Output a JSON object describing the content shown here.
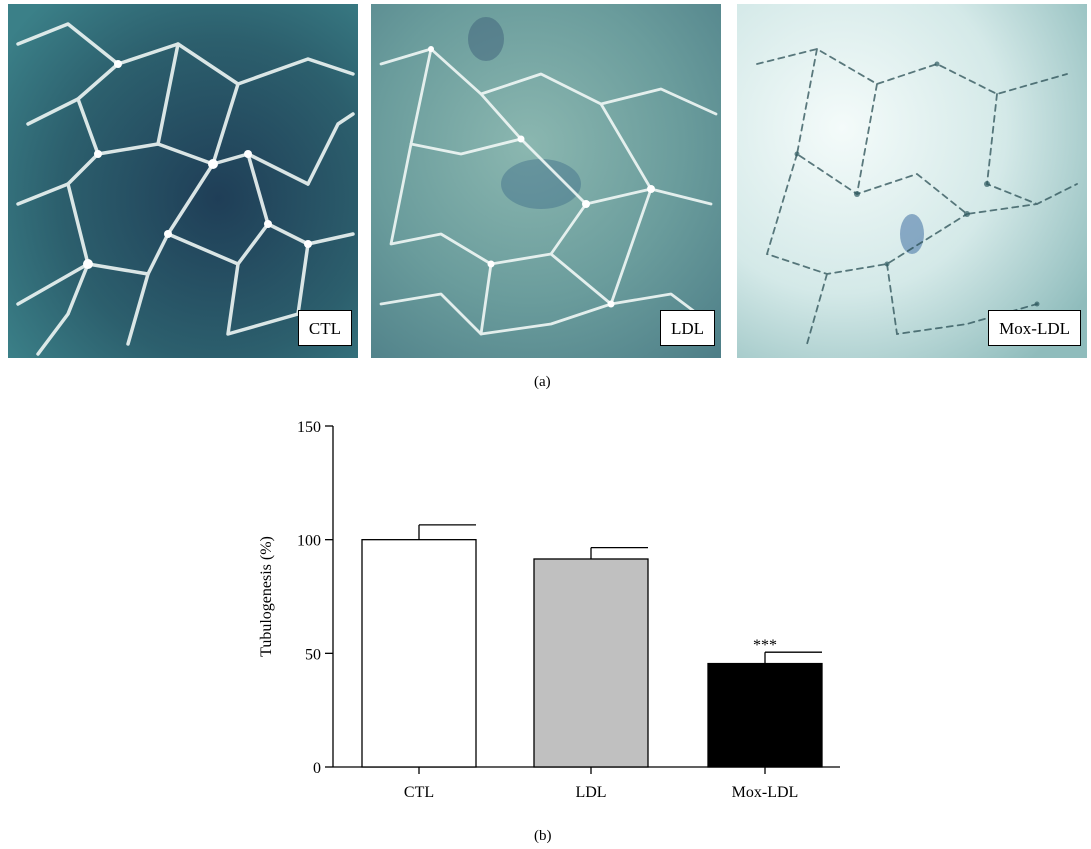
{
  "figure": {
    "panel_a_label": "(a)",
    "panel_b_label": "(b)"
  },
  "micrographs": [
    {
      "label": "CTL",
      "tint_top": "#2f6e79",
      "tint_bottom": "#1e3d52",
      "tube_density": "high"
    },
    {
      "label": "LDL",
      "tint_top": "#6e9f9b",
      "tint_bottom": "#4b7e86",
      "tube_density": "medium"
    },
    {
      "label": "Mox-LDL",
      "tint_top": "#e6f2f2",
      "tint_bottom": "#9fc6c6",
      "tube_density": "low"
    }
  ],
  "chart_data": {
    "type": "bar",
    "categories": [
      "CTL",
      "LDL",
      "Mox-LDL"
    ],
    "values": [
      100,
      91.5,
      45.5
    ],
    "errors": [
      6.5,
      5,
      5
    ],
    "bar_colors": [
      "#ffffff",
      "#c0c0c0",
      "#000000"
    ],
    "annotations": [
      "",
      "",
      "***"
    ],
    "xlabel": "",
    "ylabel": "Tubulogenesis (%)",
    "ylim": [
      0,
      150
    ],
    "yticks": [
      0,
      50,
      100,
      150
    ],
    "grid": false,
    "legend": "none"
  }
}
